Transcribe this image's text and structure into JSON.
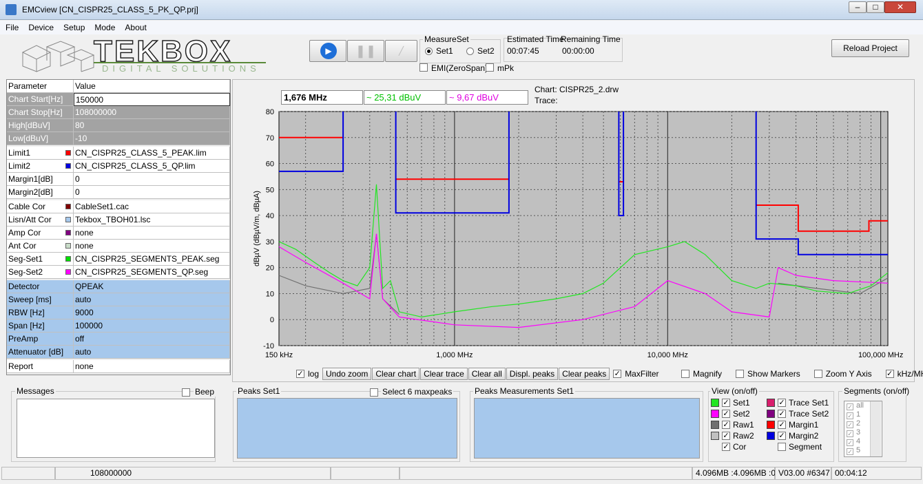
{
  "window": {
    "title": "EMCview [CN_CISPR25_CLASS_5_PK_QP.prj]"
  },
  "menu": [
    "File",
    "Device",
    "Setup",
    "Mode",
    "About"
  ],
  "logo": {
    "name": "TEKBOX",
    "tagline": "DIGITAL SOLUTIONS"
  },
  "measure_set": {
    "label": "MeasureSet",
    "options": [
      "Set1",
      "Set2"
    ],
    "checks": [
      "EMI(ZeroSpan)",
      "mPk"
    ]
  },
  "time": {
    "estimated_label": "Estimated Time",
    "estimated": "00:07:45",
    "remaining_label": "Remaining Time",
    "remaining": "00:00:00"
  },
  "reload": "Reload Project",
  "params": {
    "header": [
      "Parameter",
      "Value"
    ],
    "groups": [
      [
        {
          "name": "Chart Start[Hz]",
          "value": "150000"
        },
        {
          "name": "Chart Stop[Hz]",
          "value": "108000000"
        },
        {
          "name": "High[dBuV]",
          "value": "80"
        },
        {
          "name": "Low[dBuV]",
          "value": "-10"
        }
      ],
      [
        {
          "series": 3,
          "value": "CN_CISPR25_CLASS_5_PEAK.lim"
        },
        {
          "series": 4,
          "value": "CN_CISPR25_CLASS_5_QP.lim"
        },
        {
          "name": "Margin1[dB]",
          "value": "0"
        },
        {
          "name": "Margin2[dB]",
          "value": "0"
        }
      ],
      [
        {
          "name": "Cable Cor",
          "swatch": "#800000",
          "value": "CableSet1.cac"
        },
        {
          "name": "Lisn/Att Cor",
          "swatch": "#a6c8ec",
          "value": "Tekbox_TBOH01.lsc"
        },
        {
          "name": "Amp Cor",
          "swatch": "#800080",
          "value": "none"
        },
        {
          "name": "Ant Cor",
          "swatch": "#c8dcc8",
          "value": "none"
        },
        {
          "name": "Seg-Set1",
          "swatch": "#00e000",
          "value": "CN_CISPR25_SEGMENTS_PEAK.seg"
        },
        {
          "name": "Seg-Set2",
          "swatch": "#ff00ff",
          "value": "CN_CISPR25_SEGMENTS_QP.seg"
        }
      ],
      [
        {
          "name": "Detector",
          "value": "QPEAK"
        },
        {
          "name": "Sweep [ms]",
          "value": "auto"
        },
        {
          "name": "RBW [Hz]",
          "value": "9000"
        },
        {
          "name": "Span [Hz]",
          "value": "100000"
        },
        {
          "name": "PreAmp",
          "value": "off"
        },
        {
          "name": "Attenuator [dB]",
          "value": "auto"
        }
      ],
      [
        {
          "name": "Report",
          "value": "none"
        }
      ]
    ]
  },
  "readout": {
    "freq": "1,676 MHz",
    "set1": "~ 25,31 dBuV",
    "set2": "~ 9,67 dBuV",
    "chart": "Chart: CISPR25_2.drw",
    "trace": "Trace:"
  },
  "chart_data": {
    "type": "line",
    "y_label": "dBµV  (dBµV/m, dBµA)",
    "xscale": "log",
    "grid": true,
    "xlim": [
      0.15,
      108
    ],
    "xticks": [
      {
        "value": 0.15,
        "label": "150 kHz"
      },
      {
        "value": 1,
        "label": "1,000 MHz"
      },
      {
        "value": 10,
        "label": "10,000 MHz"
      },
      {
        "value": 100,
        "label": "100,000 MHz"
      }
    ],
    "ylim": [
      -10,
      80
    ],
    "yticks": [
      -10,
      0,
      10,
      20,
      30,
      40,
      50,
      60,
      70,
      80
    ],
    "series": [
      {
        "name": "Set1",
        "color": "#22e622",
        "x": [
          0.15,
          0.18,
          0.22,
          0.26,
          0.3,
          0.35,
          0.4,
          0.43,
          0.46,
          0.5,
          0.55,
          0.7,
          1,
          1.5,
          2,
          3,
          4,
          5,
          7,
          10,
          12,
          15,
          20,
          26,
          30,
          40,
          50,
          70,
          90,
          108
        ],
        "values": [
          30,
          27,
          22,
          18,
          15,
          13,
          20,
          52,
          12,
          15,
          3,
          1,
          3,
          5,
          6,
          8,
          10,
          14,
          25,
          28,
          30,
          25,
          15,
          12,
          14,
          13,
          11,
          10,
          13,
          18
        ]
      },
      {
        "name": "Set2",
        "color": "#ff00ff",
        "x": [
          0.15,
          0.2,
          0.3,
          0.4,
          0.43,
          0.46,
          0.55,
          1,
          2,
          4,
          7,
          10,
          15,
          20,
          30,
          33,
          40,
          60,
          108
        ],
        "values": [
          28,
          22,
          14,
          8,
          33,
          8,
          1,
          -2,
          -3,
          0,
          5,
          15,
          10,
          3,
          1,
          20,
          17,
          15,
          14
        ]
      },
      {
        "name": "Raw1",
        "color": "#707070",
        "x": [
          0.15,
          0.2,
          0.3,
          0.4,
          0.43,
          0.46,
          0.55,
          null,
          33,
          50,
          80,
          108
        ],
        "values": [
          17,
          13,
          10,
          12,
          33,
          8,
          2,
          null,
          14,
          12,
          10,
          16
        ]
      },
      {
        "name": "Limit1",
        "color": "#ff0000",
        "x": [
          0.15,
          0.3,
          null,
          0.53,
          1.8,
          null,
          5.9,
          6.2,
          null,
          26,
          41,
          41,
          88,
          88,
          108
        ],
        "values": [
          70,
          70,
          null,
          54,
          54,
          null,
          53,
          53,
          null,
          44,
          44,
          34,
          34,
          38,
          38
        ]
      },
      {
        "name": "Limit2",
        "color": "#0000e0",
        "x": [
          0.15,
          0.3,
          0.3,
          null,
          0.53,
          0.53,
          1.8,
          1.8,
          null,
          5.9,
          5.9,
          6.2,
          6.2,
          null,
          26,
          26,
          41,
          41,
          108
        ],
        "values": [
          57,
          57,
          80,
          null,
          80,
          41,
          41,
          80,
          null,
          80,
          40,
          40,
          80,
          null,
          80,
          31,
          31,
          25,
          25
        ]
      }
    ]
  },
  "chart_toolbar": {
    "left": [
      {
        "kind": "check",
        "label": "log",
        "checked": true
      },
      {
        "kind": "button",
        "label": "Undo zoom"
      },
      {
        "kind": "button",
        "label": "Clear chart"
      },
      {
        "kind": "button",
        "label": "Clear trace"
      },
      {
        "kind": "button",
        "label": "Clear all"
      },
      {
        "kind": "button",
        "label": "Displ. peaks"
      },
      {
        "kind": "button",
        "label": "Clear peaks"
      },
      {
        "kind": "check",
        "label": "MaxFilter",
        "checked": true
      }
    ],
    "right": [
      {
        "kind": "check",
        "label": "Magnify",
        "checked": false
      },
      {
        "kind": "check",
        "label": "Show Markers",
        "checked": false
      },
      {
        "kind": "check",
        "label": "Zoom Y Axis",
        "checked": false
      },
      {
        "kind": "check",
        "label": "kHz/MHz",
        "checked": true
      }
    ]
  },
  "messages": {
    "title": "Messages",
    "beep": "Beep"
  },
  "peaks": {
    "title": "Peaks Set1",
    "select": "Select 6 maxpeaks"
  },
  "peaks_meas": {
    "title": "Peaks Measurements Set1"
  },
  "view": {
    "title": "View (on/off)",
    "items": [
      {
        "series": 0,
        "checked": true
      },
      {
        "label": "Trace Set1",
        "color": "#d81e6c",
        "checked": true
      },
      {
        "series": 1,
        "checked": true
      },
      {
        "label": "Trace Set2",
        "color": "#800080",
        "checked": true
      },
      {
        "series": 2,
        "checked": true
      },
      {
        "label": "Margin1",
        "color": "#ff0000",
        "checked": true
      },
      {
        "label": "Raw2",
        "color": "#c0c0c0",
        "checked": true
      },
      {
        "label": "Margin2",
        "color": "#0000e0",
        "checked": true
      },
      {
        "label": "Cor",
        "checked": true
      },
      {
        "label": "Segment",
        "checked": false
      }
    ]
  },
  "segments": {
    "title": "Segments (on/off)",
    "items": [
      "all",
      "1",
      "2",
      "3",
      "4",
      "5"
    ]
  },
  "status": [
    "108000000",
    "4.096MB :4.096MB :0",
    "V03.00 #6347",
    "00:04:12"
  ]
}
